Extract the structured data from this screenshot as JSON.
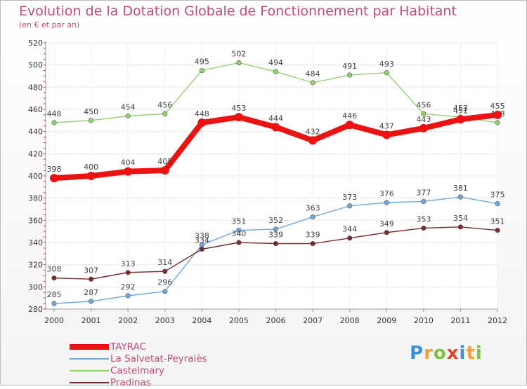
{
  "title": "Evolution de la Dotation Globale de Fonctionnement par Habitant",
  "subtitle": "(en € et par an)",
  "brand": {
    "letters": [
      {
        "ch": "P",
        "color": "#3a8fd6"
      },
      {
        "ch": "r",
        "color": "#f2a23a"
      },
      {
        "ch": "o",
        "color": "#7dc242"
      },
      {
        "ch": "x",
        "color": "#e2462f"
      },
      {
        "ch": "i",
        "color": "#3a8fd6"
      },
      {
        "ch": "t",
        "color": "#f2a23a"
      },
      {
        "ch": "i",
        "color": "#7dc242"
      }
    ]
  },
  "chart_data": {
    "type": "line",
    "x": [
      "2000",
      "2001",
      "2002",
      "2003",
      "2004",
      "2005",
      "2006",
      "2007",
      "2008",
      "2009",
      "2010",
      "2011",
      "2012"
    ],
    "ylim": [
      280,
      520
    ],
    "yticks": [
      280,
      300,
      320,
      340,
      360,
      380,
      400,
      420,
      440,
      460,
      480,
      500,
      520
    ],
    "grid": true,
    "legend": "bottom-left",
    "series": [
      {
        "name": "Castelmary",
        "color": "#92d36e",
        "values": [
          448,
          450,
          454,
          456,
          495,
          502,
          494,
          484,
          491,
          493,
          456,
          453,
          448
        ]
      },
      {
        "name": "La Salvetat-Peyralès",
        "color": "#6fa8dc",
        "values": [
          285,
          287,
          292,
          296,
          338,
          351,
          352,
          363,
          373,
          376,
          377,
          381,
          375
        ]
      },
      {
        "name": "Pradinas",
        "color": "#7b2c2c",
        "values": [
          308,
          307,
          313,
          314,
          334,
          340,
          339,
          339,
          344,
          349,
          353,
          354,
          351
        ]
      },
      {
        "name": "TAYRAC",
        "color": "#ee1111",
        "values": [
          398,
          400,
          404,
          405,
          448,
          453,
          444,
          432,
          446,
          437,
          443,
          451,
          455
        ]
      }
    ],
    "legend_order": [
      "TAYRAC",
      "La Salvetat-Peyralès",
      "Castelmary",
      "Pradinas"
    ]
  }
}
